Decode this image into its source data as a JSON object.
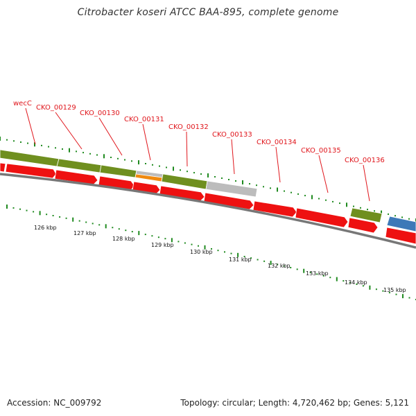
{
  "header": {
    "title": "Citrobacter koseri ATCC BAA-895, complete genome"
  },
  "footer": {
    "accession": "Accession: NC_009792",
    "summary": "Topology: circular; Length: 4,720,462 bp; Genes: 5,121"
  },
  "map": {
    "colors": {
      "cds_forward": "#6f8f1f",
      "cds_reverse": "#ee1111",
      "gray_feature": "#bcbcbc",
      "orange_feature": "#f08a10",
      "blue_feature": "#3d79b8",
      "backbone": "#777777",
      "tick": "#1f8a1f",
      "label": "#e0151b"
    },
    "gene_labels": [
      {
        "id": "wecC",
        "text": "wecC"
      },
      {
        "id": "CKO_00129",
        "text": "CKO_00129"
      },
      {
        "id": "CKO_00130",
        "text": "CKO_00130"
      },
      {
        "id": "CKO_00131",
        "text": "CKO_00131"
      },
      {
        "id": "CKO_00132",
        "text": "CKO_00132"
      },
      {
        "id": "CKO_00133",
        "text": "CKO_00133"
      },
      {
        "id": "CKO_00134",
        "text": "CKO_00134"
      },
      {
        "id": "CKO_00135",
        "text": "CKO_00135"
      },
      {
        "id": "CKO_00136",
        "text": "CKO_00136"
      }
    ],
    "kbp_labels": [
      "126 kbp",
      "127 kbp",
      "128 kbp",
      "129 kbp",
      "130 kbp",
      "131 kbp",
      "132 kbp",
      "133 kbp",
      "134 kbp",
      "135 kbp"
    ]
  }
}
